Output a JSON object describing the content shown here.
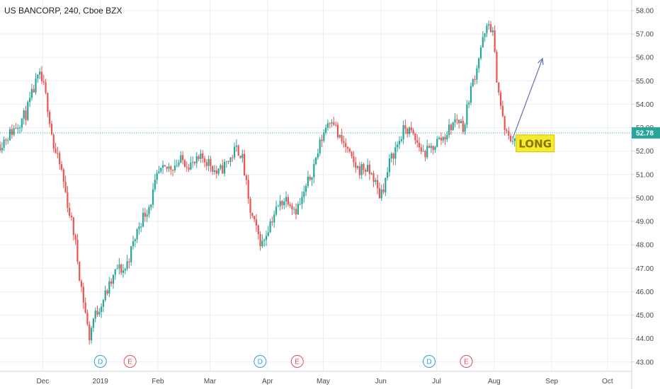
{
  "header": {
    "title": "US BANCORP, 240, Cboe BZX"
  },
  "colors": {
    "up": "#26a69a",
    "down": "#ef5350",
    "grid": "#eceef2",
    "axis_border": "#cfd3dc",
    "reference_line": "#26a69a",
    "last_price_bg": "#26a69a",
    "arrow": "#6c78b3",
    "long_bg": "#f5ea2b",
    "long_border": "#d4c000",
    "long_text": "#8a7300",
    "dividend_marker": "#2aa3d6",
    "earnings_marker": "#e24d5e"
  },
  "chart_data": {
    "type": "candlestick",
    "symbol": "US BANCORP",
    "interval": "240",
    "exchange": "Cboe BZX",
    "y_axis_position": "right",
    "ylim": [
      42.6,
      58.3
    ],
    "y_ticks": [
      "43.00",
      "44.00",
      "45.00",
      "46.00",
      "47.00",
      "48.00",
      "49.00",
      "50.00",
      "51.00",
      "52.00",
      "53.00",
      "54.00",
      "55.00",
      "56.00",
      "57.00",
      "58.00"
    ],
    "x_ticks": [
      "Dec",
      "2019",
      "Feb",
      "Mar",
      "Apr",
      "May",
      "Jun",
      "Jul",
      "Aug",
      "Sep",
      "Oct"
    ],
    "x_tick_dates": [
      "2018-12-01",
      "2019-01-01",
      "2019-02-01",
      "2019-03-01",
      "2019-04-01",
      "2019-05-01",
      "2019-06-01",
      "2019-07-01",
      "2019-08-01",
      "2019-09-01",
      "2019-10-01"
    ],
    "x_range": [
      "2018-11-08",
      "2019-10-14"
    ],
    "last_price": "52.78",
    "reference_level": 52.78,
    "grid": true,
    "daily_closes": [
      [
        "2018-11-08",
        52.3
      ],
      [
        "2018-11-15",
        52.9
      ],
      [
        "2018-11-22",
        53.6
      ],
      [
        "2018-11-26",
        54.6
      ],
      [
        "2018-11-29",
        55.2
      ],
      [
        "2018-12-01",
        54.9
      ],
      [
        "2018-12-04",
        53.8
      ],
      [
        "2018-12-07",
        52.1
      ],
      [
        "2018-12-11",
        51.2
      ],
      [
        "2018-12-14",
        49.9
      ],
      [
        "2018-12-18",
        48.4
      ],
      [
        "2018-12-21",
        46.6
      ],
      [
        "2018-12-24",
        45.1
      ],
      [
        "2018-12-26",
        44.0
      ],
      [
        "2018-12-28",
        44.8
      ],
      [
        "2019-01-02",
        45.6
      ],
      [
        "2019-01-07",
        46.4
      ],
      [
        "2019-01-10",
        47.0
      ],
      [
        "2019-01-14",
        46.9
      ],
      [
        "2019-01-17",
        47.6
      ],
      [
        "2019-01-22",
        48.9
      ],
      [
        "2019-01-28",
        49.8
      ],
      [
        "2019-02-01",
        51.0
      ],
      [
        "2019-02-07",
        51.3
      ],
      [
        "2019-02-14",
        51.6
      ],
      [
        "2019-02-20",
        51.4
      ],
      [
        "2019-02-25",
        51.7
      ],
      [
        "2019-03-01",
        51.5
      ],
      [
        "2019-03-05",
        51.0
      ],
      [
        "2019-03-08",
        51.3
      ],
      [
        "2019-03-12",
        51.7
      ],
      [
        "2019-03-15",
        52.1
      ],
      [
        "2019-03-18",
        51.9
      ],
      [
        "2019-03-21",
        50.3
      ],
      [
        "2019-03-22",
        49.6
      ],
      [
        "2019-03-26",
        48.6
      ],
      [
        "2019-03-29",
        48.0
      ],
      [
        "2019-04-02",
        48.9
      ],
      [
        "2019-04-05",
        49.4
      ],
      [
        "2019-04-09",
        49.9
      ],
      [
        "2019-04-12",
        50.0
      ],
      [
        "2019-04-16",
        49.5
      ],
      [
        "2019-04-19",
        49.8
      ],
      [
        "2019-04-23",
        50.7
      ],
      [
        "2019-04-26",
        51.4
      ],
      [
        "2019-04-30",
        52.5
      ],
      [
        "2019-05-03",
        53.2
      ],
      [
        "2019-05-06",
        53.5
      ],
      [
        "2019-05-09",
        52.6
      ],
      [
        "2019-05-13",
        52.2
      ],
      [
        "2019-05-16",
        51.6
      ],
      [
        "2019-05-20",
        51.2
      ],
      [
        "2019-05-23",
        51.3
      ],
      [
        "2019-05-28",
        50.9
      ],
      [
        "2019-05-31",
        50.1
      ],
      [
        "2019-06-03",
        50.6
      ],
      [
        "2019-06-06",
        51.6
      ],
      [
        "2019-06-10",
        52.3
      ],
      [
        "2019-06-14",
        53.0
      ],
      [
        "2019-06-17",
        52.8
      ],
      [
        "2019-06-20",
        52.4
      ],
      [
        "2019-06-24",
        51.9
      ],
      [
        "2019-06-27",
        52.0
      ],
      [
        "2019-07-01",
        52.4
      ],
      [
        "2019-07-05",
        52.6
      ],
      [
        "2019-07-09",
        53.1
      ],
      [
        "2019-07-12",
        53.4
      ],
      [
        "2019-07-16",
        53.0
      ],
      [
        "2019-07-18",
        54.2
      ],
      [
        "2019-07-22",
        55.4
      ],
      [
        "2019-07-25",
        56.5
      ],
      [
        "2019-07-29",
        57.4
      ],
      [
        "2019-07-31",
        57.2
      ],
      [
        "2019-08-02",
        55.4
      ],
      [
        "2019-08-05",
        53.6
      ],
      [
        "2019-08-07",
        52.8
      ],
      [
        "2019-08-09",
        52.5
      ],
      [
        "2019-08-12",
        52.6
      ]
    ],
    "events": [
      {
        "date": "2019-01-01",
        "label": "D",
        "kind": "dividend"
      },
      {
        "date": "2019-01-17",
        "label": "E",
        "kind": "earnings"
      },
      {
        "date": "2019-03-28",
        "label": "D",
        "kind": "dividend"
      },
      {
        "date": "2019-04-17",
        "label": "E",
        "kind": "earnings"
      },
      {
        "date": "2019-06-27",
        "label": "D",
        "kind": "dividend"
      },
      {
        "date": "2019-07-17",
        "label": "E",
        "kind": "earnings"
      }
    ],
    "annotations": {
      "arrow": {
        "from": [
          "2019-08-11",
          52.55
        ],
        "to": [
          "2019-08-27",
          55.95
        ]
      },
      "label": {
        "text": "LONG",
        "date": "2019-08-12",
        "price": 52.3
      }
    }
  }
}
